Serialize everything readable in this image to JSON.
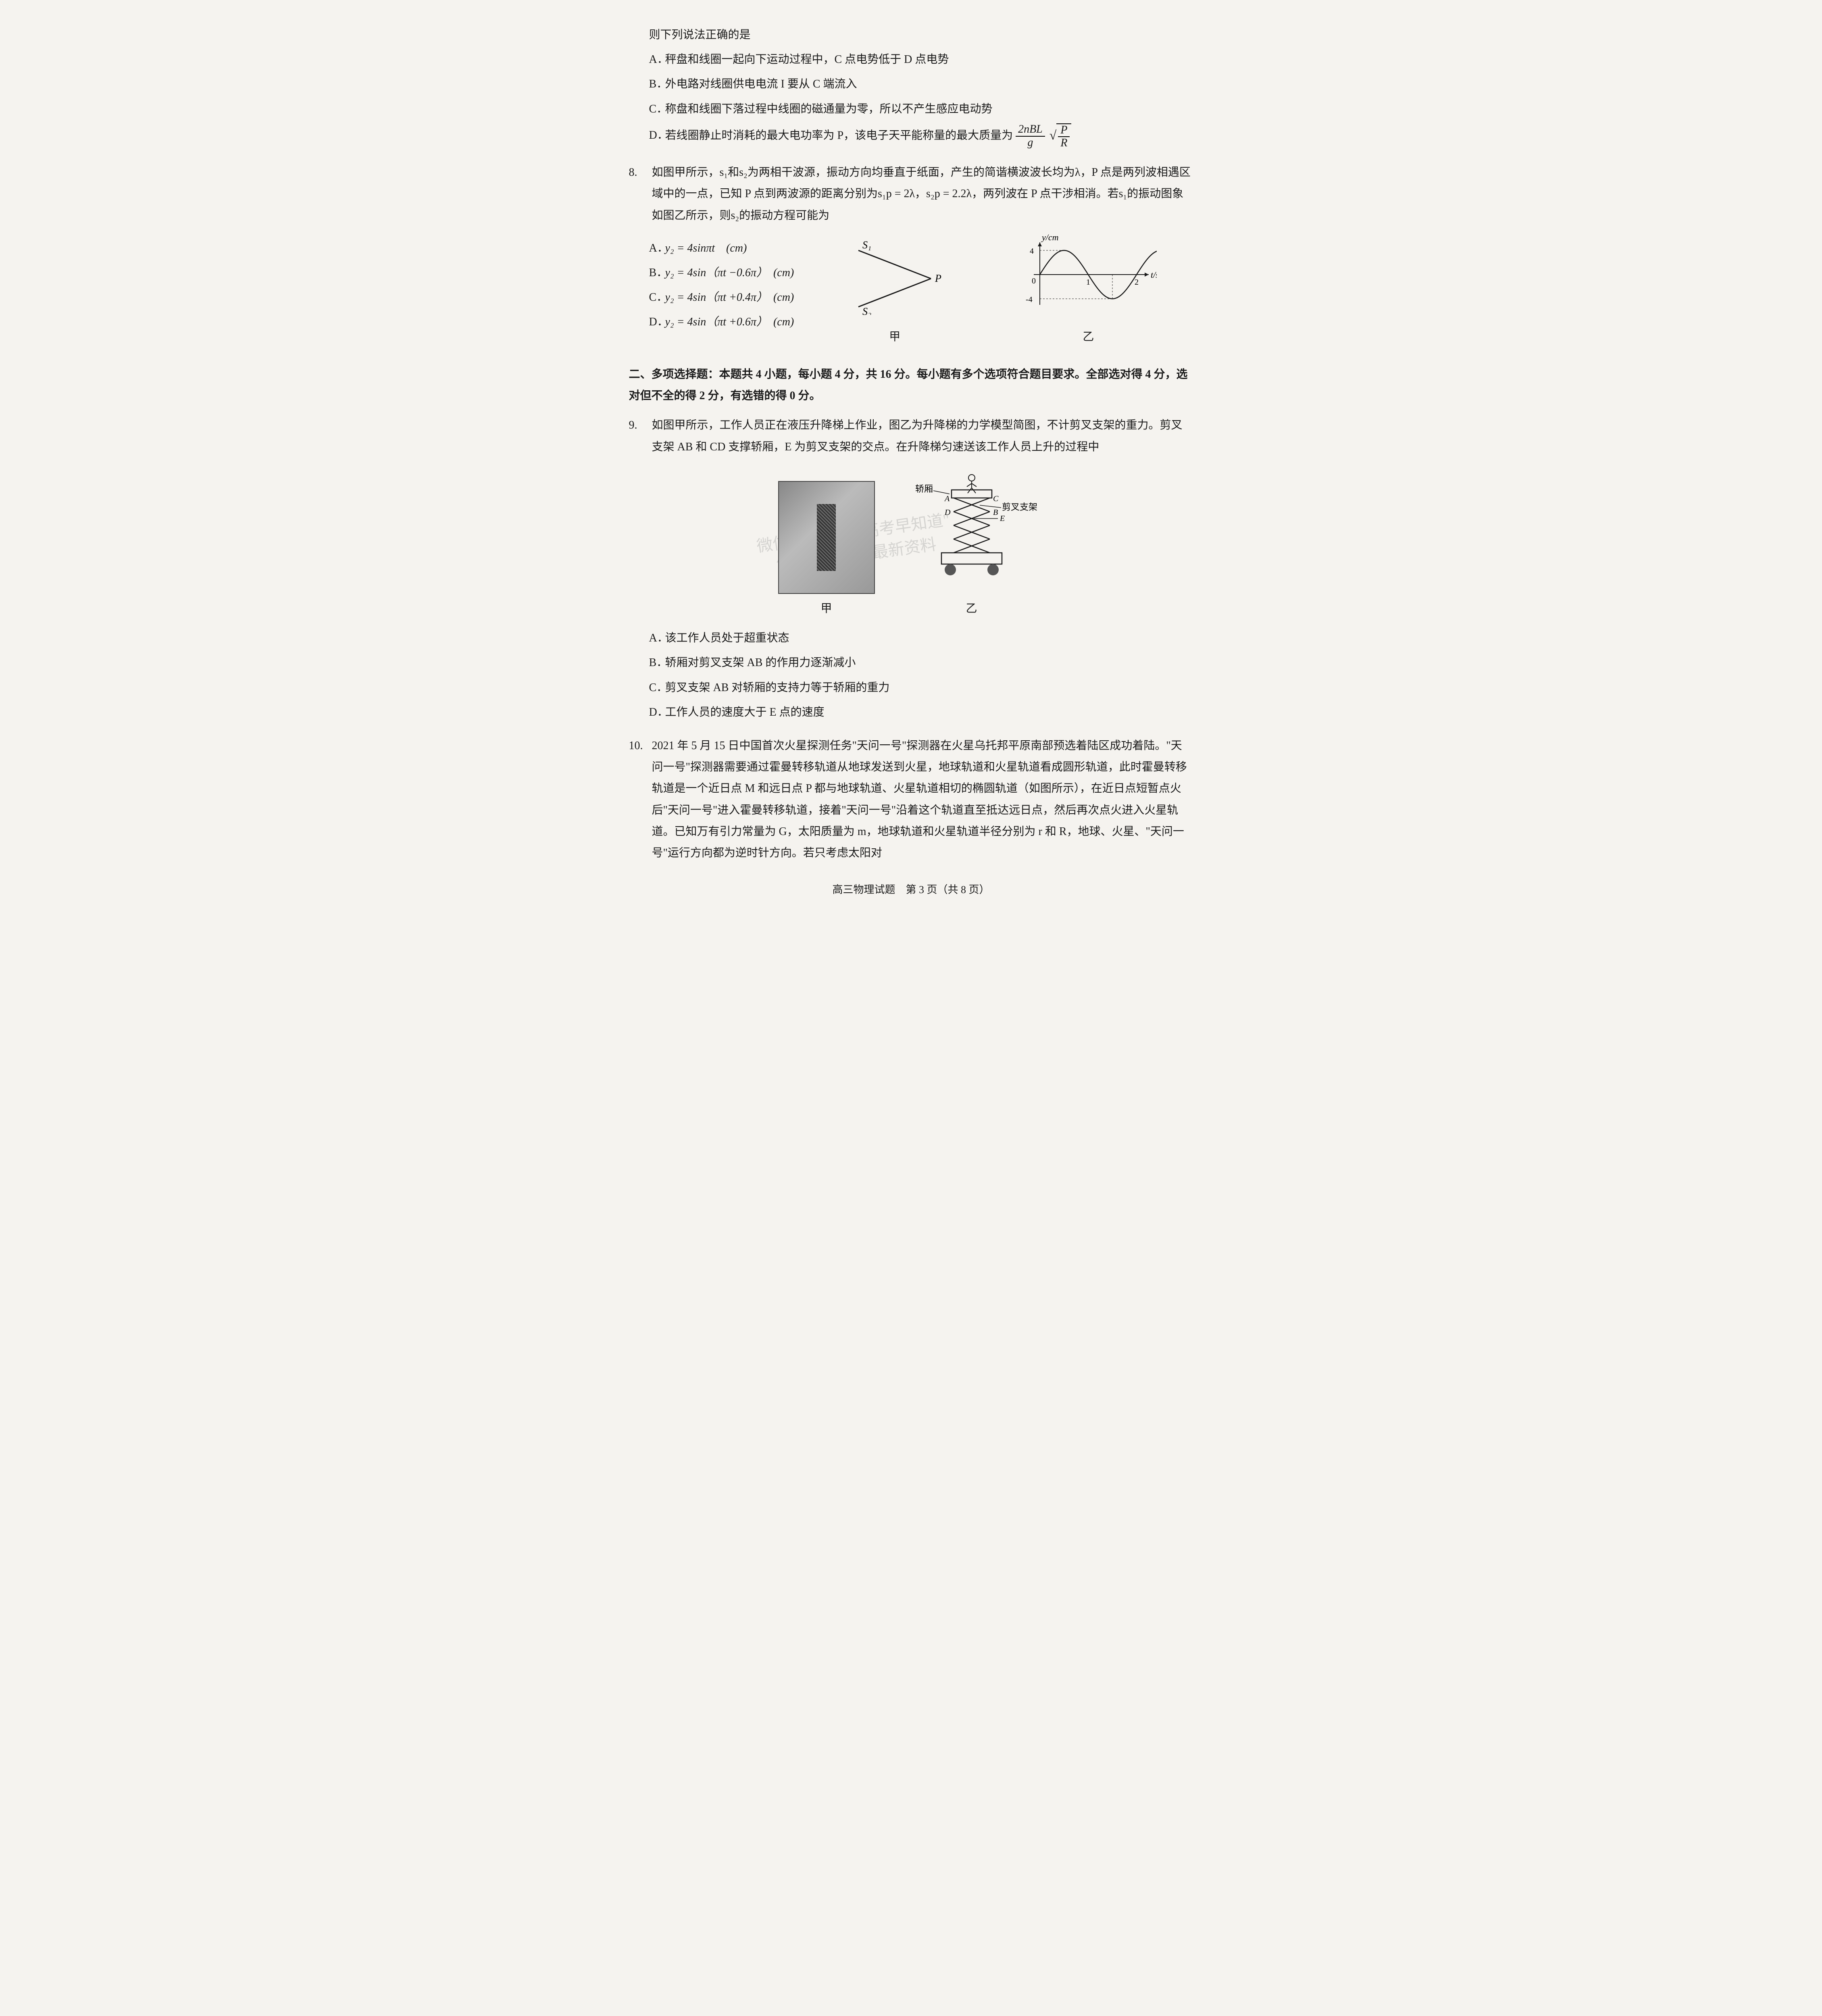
{
  "q7_tail": {
    "stem": "则下列说法正确的是",
    "options": {
      "A": "秤盘和线圈一起向下运动过程中，C 点电势低于 D 点电势",
      "B": "外电路对线圈供电电流 I 要从 C 端流入",
      "C": "称盘和线圈下落过程中线圈的磁通量为零，所以不产生感应电动势",
      "D_prefix": "若线圈静止时消耗的最大电功率为 P，该电子天平能称量的最大质量为",
      "D_frac_num": "2nBL",
      "D_frac_den": "g",
      "D_sqrt_num": "P",
      "D_sqrt_den": "R"
    }
  },
  "q8": {
    "num": "8.",
    "stem": "如图甲所示，s₁和s₂为两相干波源，振动方向均垂直于纸面，产生的简谐横波波长均为λ，P 点是两列波相遇区域中的一点，已知 P 点到两波源的距离分别为s₁p = 2λ，s₂p = 2.2λ，两列波在 P 点干涉相消。若s₁的振动图象如图乙所示，则s₂的振动方程可能为",
    "options": {
      "A": "y₂ = 4sinπt　(cm)",
      "B": "y₂ = 4sin（πt −0.6π）　(cm)",
      "C": "y₂ = 4sin（πt +0.4π）　(cm)",
      "D": "y₂ = 4sin（πt +0.6π）　(cm)"
    },
    "diagram_jia": {
      "label": "甲",
      "s1": "S₁",
      "s2": "S₂",
      "p": "P",
      "line_color": "#1a1a1a",
      "line_width": 3
    },
    "diagram_yi": {
      "label": "乙",
      "ylabel": "y/cm",
      "xlabel": "t/s",
      "ymax": 4,
      "ymin": -4,
      "xmax": 2,
      "xticks": [
        1,
        2
      ],
      "yticks": [
        4,
        -4
      ],
      "curve_color": "#1a1a1a",
      "axis_color": "#1a1a1a",
      "grid_dash": "4,4",
      "line_width": 2.5,
      "period": 2,
      "amplitude": 4
    }
  },
  "section2": {
    "title": "二、多项选择题：本题共 4 小题，每小题 4 分，共 16 分。每小题有多个选项符合题目要求。全部选对得 4 分，选对但不全的得 2 分，有选错的得 0 分。"
  },
  "q9": {
    "num": "9.",
    "stem": "如图甲所示，工作人员正在液压升降梯上作业，图乙为升降梯的力学模型简图，不计剪叉支架的重力。剪叉支架 AB 和 CD 支撑轿厢，E 为剪叉支架的交点。在升降梯匀速送该工作人员上升的过程中",
    "diagram_jia_label": "甲",
    "diagram_yi": {
      "label": "乙",
      "jiaoxiang": "轿厢",
      "jianchazhijia": "剪叉支架",
      "A": "A",
      "B": "B",
      "C": "C",
      "D": "D",
      "E": "E",
      "line_color": "#1a1a1a",
      "fill_color": "#666666",
      "wheel_color": "#555555"
    },
    "options": {
      "A": "该工作人员处于超重状态",
      "B": "轿厢对剪叉支架 AB 的作用力逐渐减小",
      "C": "剪叉支架 AB 对轿厢的支持力等于轿厢的重力",
      "D": "工作人员的速度大于 E 点的速度"
    }
  },
  "q10": {
    "num": "10.",
    "stem": "2021 年 5 月 15 日中国首次火星探测任务\"天问一号\"探测器在火星乌托邦平原南部预选着陆区成功着陆。\"天问一号\"探测器需要通过霍曼转移轨道从地球发送到火星，地球轨道和火星轨道看成圆形轨道，此时霍曼转移轨道是一个近日点 M 和远日点 P 都与地球轨道、火星轨道相切的椭圆轨道（如图所示），在近日点短暂点火后\"天问一号\"进入霍曼转移轨道，接着\"天问一号\"沿着这个轨道直至抵达远日点，然后再次点火进入火星轨道。已知万有引力常量为 G，太阳质量为 m，地球轨道和火星轨道半径分别为 r 和 R，地球、火星、\"天问一号\"运行方向都为逆时针方向。若只考虑太阳对"
  },
  "watermark": {
    "line1": "微信搜索程序  \"高考早知道\"",
    "line2": "第一时间获取最新资料"
  },
  "footer": "高三物理试题　第 3 页（共 8 页）"
}
